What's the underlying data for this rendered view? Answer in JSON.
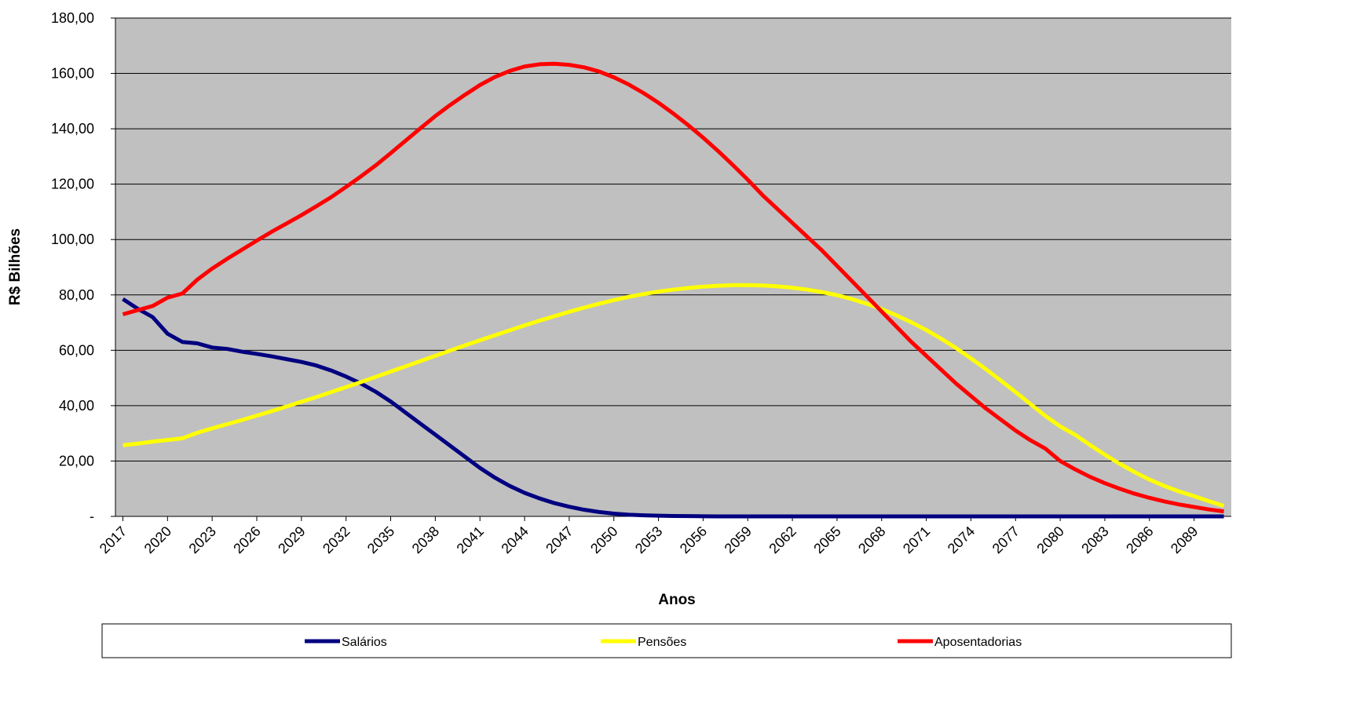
{
  "chart_data": {
    "type": "line",
    "y_label": "R$ Bilhões",
    "x_label": "Anos",
    "x": [
      2017,
      2018,
      2019,
      2020,
      2021,
      2022,
      2023,
      2024,
      2025,
      2026,
      2027,
      2028,
      2029,
      2030,
      2031,
      2032,
      2033,
      2034,
      2035,
      2036,
      2037,
      2038,
      2039,
      2040,
      2041,
      2042,
      2043,
      2044,
      2045,
      2046,
      2047,
      2048,
      2049,
      2050,
      2051,
      2052,
      2053,
      2054,
      2055,
      2056,
      2057,
      2058,
      2059,
      2060,
      2061,
      2062,
      2063,
      2064,
      2065,
      2066,
      2067,
      2068,
      2069,
      2070,
      2071,
      2072,
      2073,
      2074,
      2075,
      2076,
      2077,
      2078,
      2079,
      2080,
      2081,
      2082,
      2083,
      2084,
      2085,
      2086,
      2087,
      2088,
      2089,
      2090,
      2091
    ],
    "xlim": [
      2016.5,
      2091.5
    ],
    "xticks": [
      2017,
      2020,
      2023,
      2026,
      2029,
      2032,
      2035,
      2038,
      2041,
      2044,
      2047,
      2050,
      2053,
      2056,
      2059,
      2062,
      2065,
      2068,
      2071,
      2074,
      2077,
      2080,
      2083,
      2086,
      2089
    ],
    "ylim": [
      0,
      180
    ],
    "yticks": [
      {
        "value": 0,
        "label": "-"
      },
      {
        "value": 20,
        "label": "20,00"
      },
      {
        "value": 40,
        "label": "40,00"
      },
      {
        "value": 60,
        "label": "60,00"
      },
      {
        "value": 80,
        "label": "80,00"
      },
      {
        "value": 100,
        "label": "100,00"
      },
      {
        "value": 120,
        "label": "120,00"
      },
      {
        "value": 140,
        "label": "140,00"
      },
      {
        "value": 160,
        "label": "160,00"
      },
      {
        "value": 180,
        "label": "180,00"
      }
    ],
    "grid": true,
    "legend": "bottom",
    "series": [
      {
        "name": "Salários",
        "color": "#000080",
        "values": [
          78.5,
          75,
          72,
          66,
          63,
          62.5,
          61,
          60.5,
          59.5,
          58.7,
          57.8,
          56.8,
          55.8,
          54.5,
          52.7,
          50.5,
          48,
          45,
          41.5,
          37.5,
          33.5,
          29.5,
          25.5,
          21.5,
          17.5,
          14,
          11,
          8.5,
          6.5,
          4.8,
          3.5,
          2.4,
          1.6,
          1,
          0.6,
          0.4,
          0.25,
          0.15,
          0.1,
          0.05,
          0,
          0,
          0,
          0,
          0,
          0,
          0,
          0,
          0,
          0,
          0,
          0,
          0,
          0,
          0,
          0,
          0,
          0,
          0,
          0,
          0,
          0,
          0,
          0,
          0,
          0,
          0,
          0,
          0,
          0,
          0,
          0,
          0,
          0,
          0
        ]
      },
      {
        "name": "Pensões",
        "color": "#ffff00",
        "values": [
          25.7,
          26.3,
          27,
          27.6,
          28.2,
          30.2,
          31.8,
          33.3,
          34.8,
          36.4,
          38,
          39.7,
          41.4,
          43.1,
          44.9,
          46.7,
          48.5,
          50.4,
          52.3,
          54.2,
          56.1,
          58,
          59.9,
          61.8,
          63.6,
          65.4,
          67.2,
          69,
          70.7,
          72.3,
          73.9,
          75.4,
          76.8,
          78.1,
          79.3,
          80.3,
          81.2,
          81.9,
          82.5,
          83,
          83.3,
          83.5,
          83.5,
          83.4,
          83.1,
          82.6,
          81.9,
          81,
          79.9,
          78.5,
          76.8,
          74.9,
          72.6,
          70.1,
          67.3,
          64.2,
          60.8,
          57.1,
          53.2,
          49.1,
          44.9,
          40.6,
          36.3,
          32.5,
          29.5,
          25.8,
          22.3,
          19,
          16,
          13.3,
          11,
          9,
          7.3,
          5.5,
          3.8
        ]
      },
      {
        "name": "Aposentadorias",
        "color": "#ff0000",
        "values": [
          73,
          74.5,
          76,
          79,
          80.5,
          85.5,
          89.5,
          93,
          96.3,
          99.6,
          102.8,
          105.8,
          108.8,
          112,
          115.3,
          119,
          122.8,
          126.8,
          131.2,
          135.7,
          140.2,
          144.6,
          148.6,
          152.3,
          155.8,
          158.7,
          160.9,
          162.5,
          163.3,
          163.5,
          163.1,
          162.2,
          160.7,
          158.6,
          156,
          152.9,
          149.4,
          145.5,
          141.3,
          136.8,
          132,
          126.9,
          121.6,
          116,
          111,
          106,
          101,
          96,
          90.5,
          85,
          79.5,
          74,
          68.5,
          63,
          58,
          53,
          48,
          43.5,
          39,
          35,
          31,
          27.5,
          24.5,
          20,
          17,
          14.3,
          12,
          10,
          8.2,
          6.7,
          5.4,
          4.3,
          3.4,
          2.5,
          1.8
        ]
      }
    ]
  }
}
